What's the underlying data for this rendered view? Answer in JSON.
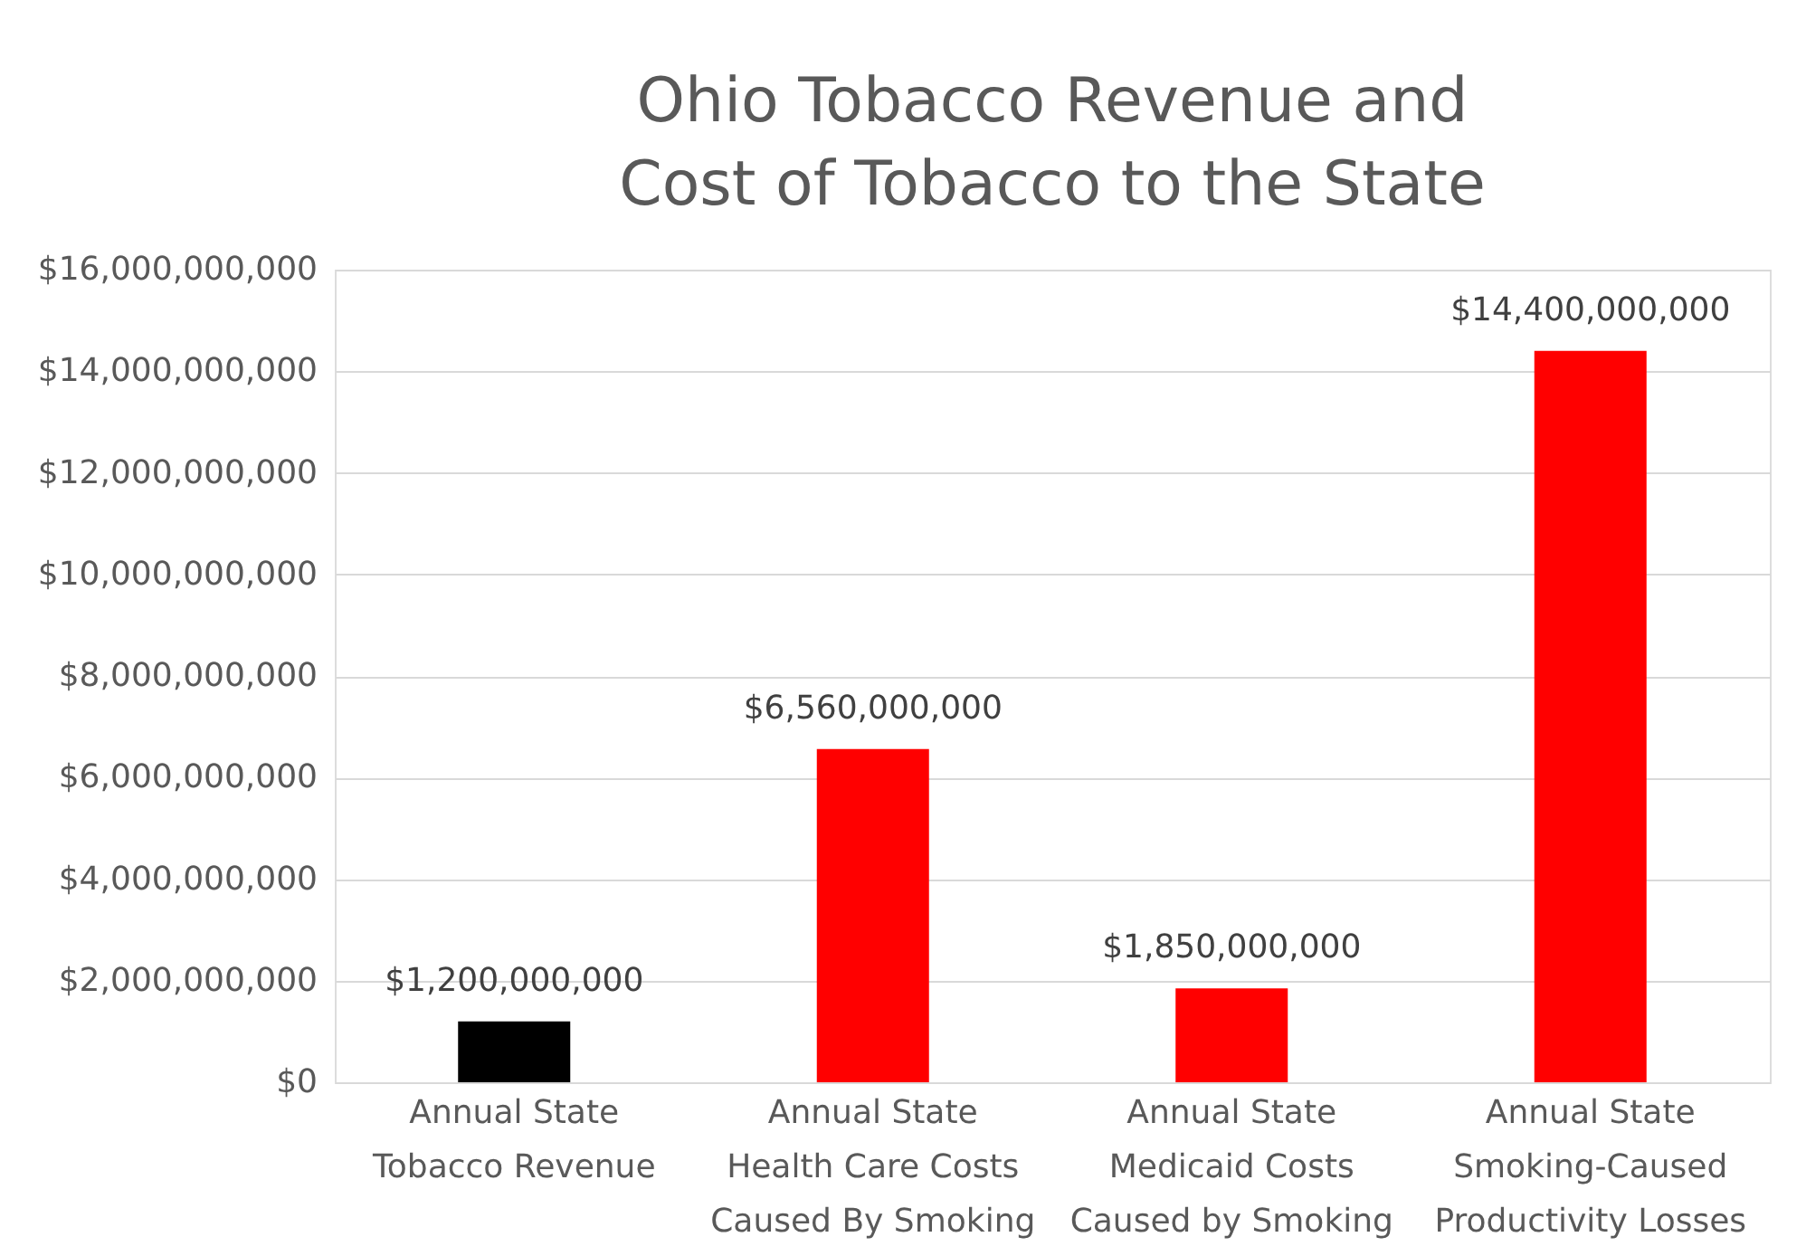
{
  "chart_data": {
    "type": "bar",
    "title": [
      "Ohio Tobacco Revenue and",
      "Cost of Tobacco to the State"
    ],
    "categories": [
      "Annual State\nTobacco Revenue",
      "Annual State\nHealth Care Costs\nCaused By Smoking",
      "Annual State\nMedicaid Costs\nCaused by Smoking",
      "Annual State\nSmoking-Caused\nProductivity Losses"
    ],
    "values": [
      1200000000,
      6560000000,
      1850000000,
      14400000000
    ],
    "colors": [
      "#000000",
      "#ff0000",
      "#ff0000",
      "#ff0000"
    ],
    "value_labels": [
      "$1,200,000,000",
      "$6,560,000,000",
      "$1,850,000,000",
      "$14,400,000,000"
    ],
    "ylim": [
      0,
      16000000000
    ],
    "yticks": [
      {
        "value": 0,
        "label": "$0"
      },
      {
        "value": 2000000000,
        "label": "$2,000,000,000"
      },
      {
        "value": 4000000000,
        "label": "$4,000,000,000"
      },
      {
        "value": 6000000000,
        "label": "$6,000,000,000"
      },
      {
        "value": 8000000000,
        "label": "$8,000,000,000"
      },
      {
        "value": 10000000000,
        "label": "$10,000,000,000"
      },
      {
        "value": 12000000000,
        "label": "$12,000,000,000"
      },
      {
        "value": 14000000000,
        "label": "$14,000,000,000"
      },
      {
        "value": 16000000000,
        "label": "$16,000,000,000"
      }
    ],
    "grid": "y"
  }
}
